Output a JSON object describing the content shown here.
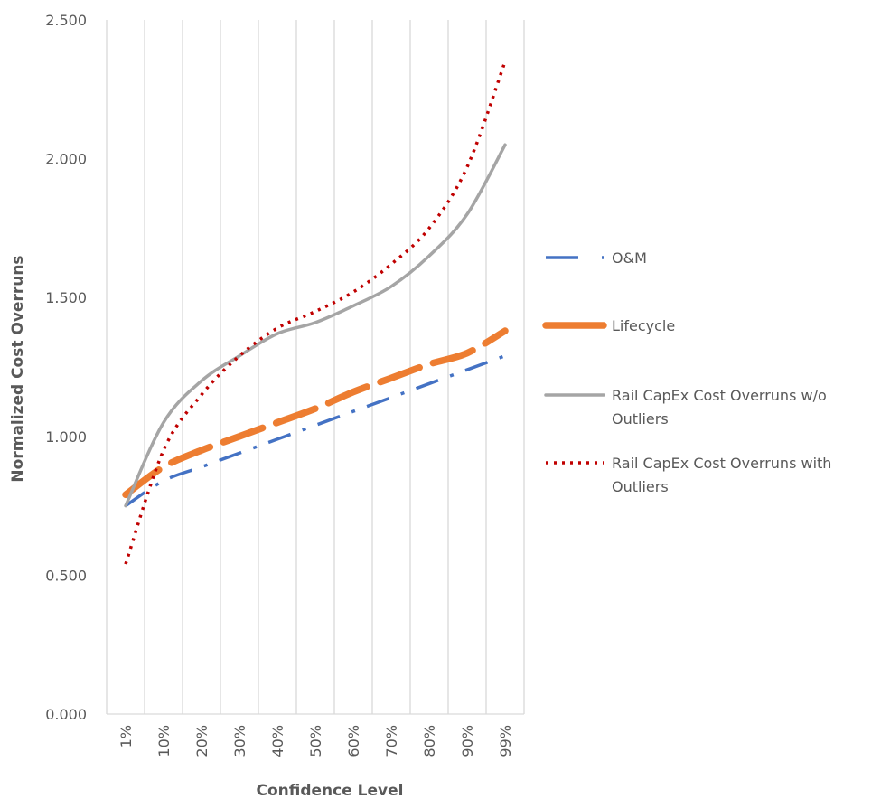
{
  "chart_data": {
    "type": "line",
    "title": "",
    "xlabel": "Confidence Level",
    "ylabel": "Normalized Cost Overruns",
    "categories": [
      "1%",
      "10%",
      "20%",
      "30%",
      "40%",
      "50%",
      "60%",
      "70%",
      "80%",
      "90%",
      "99%"
    ],
    "y_ticks": [
      "0.000",
      "0.500",
      "1.000",
      "1.500",
      "2.000",
      "2.500"
    ],
    "ylim": [
      0,
      2.5
    ],
    "grid": "vertical",
    "legend_position": "right",
    "series": [
      {
        "name": "O&M",
        "color": "#4472C4",
        "style": "dash-dot",
        "values": [
          0.75,
          0.84,
          0.89,
          0.94,
          0.99,
          1.04,
          1.09,
          1.14,
          1.19,
          1.24,
          1.29
        ]
      },
      {
        "name": "Lifecycle",
        "color": "#ED7D31",
        "style": "long-dash",
        "values": [
          0.79,
          0.89,
          0.95,
          1.0,
          1.05,
          1.1,
          1.16,
          1.21,
          1.26,
          1.3,
          1.38
        ]
      },
      {
        "name": "Rail CapEx Cost Overruns w/o Outliers",
        "color": "#A5A5A5",
        "style": "solid",
        "values": [
          0.75,
          1.05,
          1.2,
          1.29,
          1.37,
          1.41,
          1.47,
          1.54,
          1.65,
          1.8,
          2.05
        ]
      },
      {
        "name": "Rail CapEx Cost Overruns with Outliers",
        "color": "#C00000",
        "style": "dotted",
        "values": [
          0.54,
          0.95,
          1.15,
          1.29,
          1.39,
          1.45,
          1.52,
          1.62,
          1.75,
          1.97,
          2.35
        ]
      }
    ]
  }
}
